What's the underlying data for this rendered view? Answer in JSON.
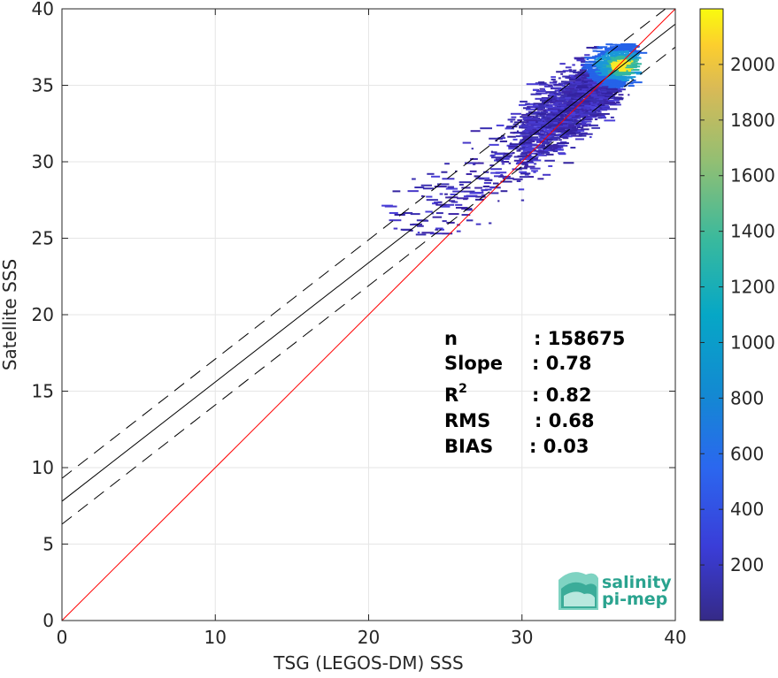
{
  "chart_data": {
    "type": "heatmap",
    "xlabel": "TSG (LEGOS-DM) SSS",
    "ylabel": "Satellite SSS",
    "xlim": [
      0,
      40
    ],
    "ylim": [
      0,
      40
    ],
    "xticks": [
      0,
      10,
      20,
      30,
      40
    ],
    "yticks": [
      0,
      5,
      10,
      15,
      20,
      25,
      30,
      35,
      40
    ],
    "grid": true,
    "colorbar": {
      "range": [
        0,
        2200
      ],
      "ticks": [
        200,
        400,
        600,
        800,
        1000,
        1200,
        1400,
        1600,
        1800,
        2000
      ],
      "colormap": "parula"
    },
    "density_core": {
      "x": 36.5,
      "y": 36.3,
      "peak_count": 2200
    },
    "density_extent": {
      "x": [
        20.5,
        38.2
      ],
      "y": [
        25.2,
        37.7
      ]
    },
    "lines": {
      "identity": {
        "slope": 1,
        "intercept": 0,
        "color": "#ff0000"
      },
      "fit": {
        "slope": 0.78,
        "intercept": 7.8,
        "color": "#000000"
      },
      "fit_upper": {
        "slope": 0.78,
        "intercept": 9.3,
        "style": "dashed"
      },
      "fit_lower": {
        "slope": 0.78,
        "intercept": 6.3,
        "style": "dashed"
      }
    },
    "stats": [
      {
        "label": "n",
        "value": ": 158675"
      },
      {
        "label": "Slope",
        "value": ": 0.78"
      },
      {
        "label": "R",
        "sup": "2",
        "value": ": 0.82"
      },
      {
        "label": "RMS",
        "value": ": 0.68"
      },
      {
        "label": "BIAS",
        "value": ": 0.03"
      }
    ]
  },
  "logo": {
    "line1": "salinity",
    "line2": "pi-mep",
    "color": "#2aa38f"
  }
}
